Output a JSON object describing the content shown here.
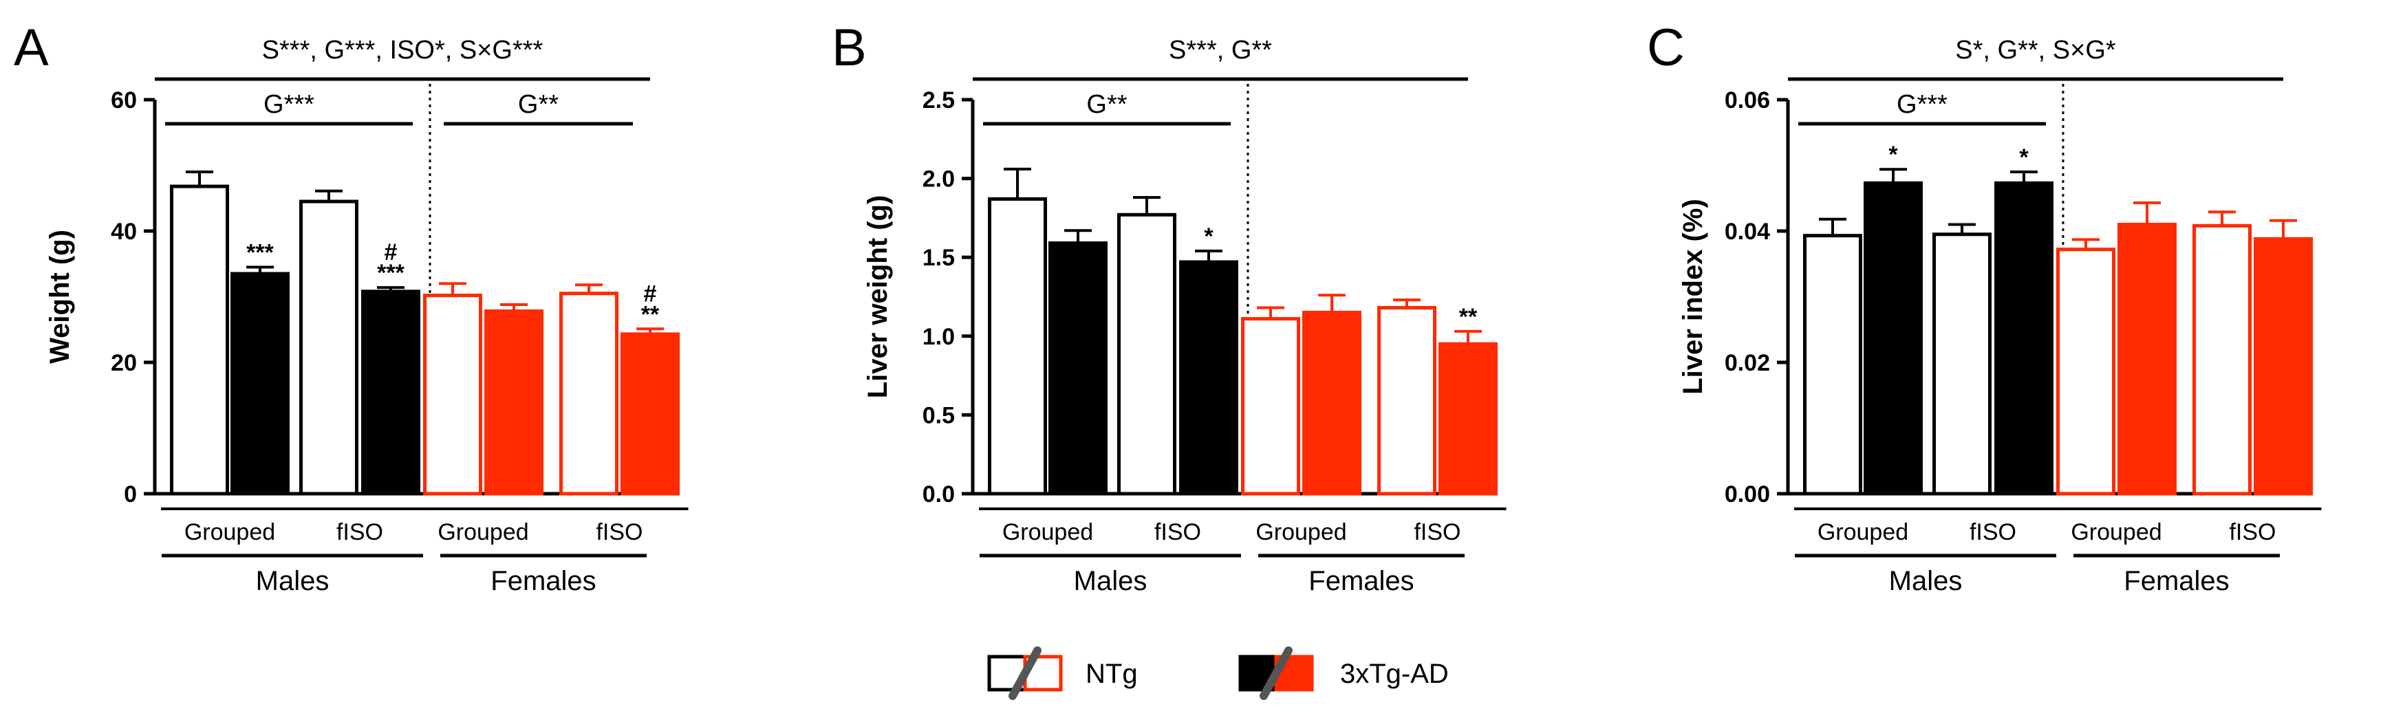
{
  "colors": {
    "ntg": "#ffffff",
    "tg": "#000000",
    "female_accent": "#ff2a00",
    "axis": "#000000"
  },
  "legend": {
    "ntg_label": "NTg",
    "tg_label": "3xTg-AD"
  },
  "chart_data": [
    {
      "type": "bar",
      "panel": "A",
      "ylabel": "Weight (g)",
      "ylim": [
        0,
        60
      ],
      "yticks": [
        "0",
        "20",
        "40",
        "60"
      ],
      "stats_top": "S***, G***, ISO*, S×G***",
      "stats_males": "G***",
      "stats_females": "G**",
      "group_labels": [
        "Grouped",
        "fISO",
        "Grouped",
        "fISO"
      ],
      "sex_labels": [
        "Males",
        "Females"
      ],
      "series": [
        {
          "name": "NTg",
          "values": [
            46.8,
            44.5,
            30.2,
            30.5
          ],
          "errors": [
            2.2,
            1.6,
            1.8,
            1.3
          ]
        },
        {
          "name": "3xTg-AD",
          "values": [
            33.5,
            30.8,
            27.8,
            24.3
          ],
          "errors": [
            1.0,
            0.6,
            1.0,
            0.8
          ]
        }
      ],
      "annotations": {
        "tg": [
          "***",
          "#\n***",
          "",
          "#\n**"
        ]
      }
    },
    {
      "type": "bar",
      "panel": "B",
      "ylabel": "Liver weight (g)",
      "ylim": [
        0,
        2.5
      ],
      "yticks": [
        "0.0",
        "0.5",
        "1.0",
        "1.5",
        "2.0",
        "2.5"
      ],
      "stats_top": "S***, G**",
      "stats_males": "G**",
      "stats_females": "",
      "group_labels": [
        "Grouped",
        "fISO",
        "Grouped",
        "fISO"
      ],
      "sex_labels": [
        "Males",
        "Females"
      ],
      "series": [
        {
          "name": "NTg",
          "values": [
            1.87,
            1.77,
            1.11,
            1.18
          ],
          "errors": [
            0.19,
            0.11,
            0.07,
            0.05
          ]
        },
        {
          "name": "3xTg-AD",
          "values": [
            1.59,
            1.47,
            1.15,
            0.95
          ],
          "errors": [
            0.08,
            0.07,
            0.11,
            0.08
          ]
        }
      ],
      "annotations": {
        "tg": [
          "",
          "*",
          "",
          "**"
        ]
      }
    },
    {
      "type": "bar",
      "panel": "C",
      "ylabel": "Liver index (%)",
      "ylim": [
        0,
        0.06
      ],
      "yticks": [
        "0.00",
        "0.02",
        "0.04",
        "0.06"
      ],
      "stats_top": "S*, G**, S×G*",
      "stats_males": "G***",
      "stats_females": "",
      "group_labels": [
        "Grouped",
        "fISO",
        "Grouped",
        "fISO"
      ],
      "sex_labels": [
        "Males",
        "Females"
      ],
      "series": [
        {
          "name": "NTg",
          "values": [
            0.0393,
            0.0395,
            0.0372,
            0.0408
          ],
          "errors": [
            0.0025,
            0.0015,
            0.0015,
            0.0021
          ]
        },
        {
          "name": "3xTg-AD",
          "values": [
            0.0473,
            0.0473,
            0.041,
            0.0388
          ],
          "errors": [
            0.0021,
            0.0017,
            0.0033,
            0.0028
          ]
        }
      ],
      "annotations": {
        "tg": [
          "*",
          "*",
          "",
          ""
        ]
      }
    }
  ]
}
